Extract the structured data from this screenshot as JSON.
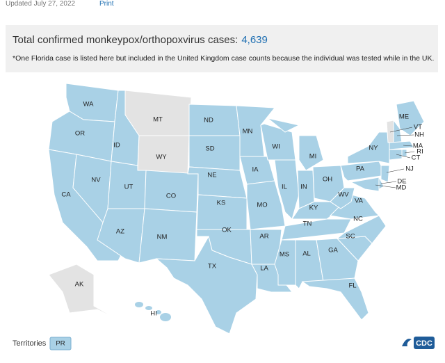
{
  "header": {
    "updated": "Updated July 27, 2022",
    "print": "Print",
    "title": "Total confirmed monkeypox/orthopoxvirus cases:",
    "total_cases": "4,639",
    "note": "*One Florida case is listed here but included in the United Kingdom case counts because the individual was tested while in the UK."
  },
  "states": [
    {
      "label": "WA",
      "color": "#a9d1e6"
    },
    {
      "label": "OR",
      "color": "#a9d1e6"
    },
    {
      "label": "CA",
      "color": "#a9d1e6"
    },
    {
      "label": "NV",
      "color": "#a9d1e6"
    },
    {
      "label": "ID",
      "color": "#a9d1e6"
    },
    {
      "label": "MT",
      "color": "#e3e3e3"
    },
    {
      "label": "WY",
      "color": "#e3e3e3"
    },
    {
      "label": "UT",
      "color": "#a9d1e6"
    },
    {
      "label": "AZ",
      "color": "#a9d1e6"
    },
    {
      "label": "CO",
      "color": "#a9d1e6"
    },
    {
      "label": "NM",
      "color": "#a9d1e6"
    },
    {
      "label": "ND",
      "color": "#a9d1e6"
    },
    {
      "label": "SD",
      "color": "#a9d1e6"
    },
    {
      "label": "NE",
      "color": "#a9d1e6"
    },
    {
      "label": "KS",
      "color": "#a9d1e6"
    },
    {
      "label": "OK",
      "color": "#a9d1e6"
    },
    {
      "label": "TX",
      "color": "#a9d1e6"
    },
    {
      "label": "MN",
      "color": "#a9d1e6"
    },
    {
      "label": "IA",
      "color": "#a9d1e6"
    },
    {
      "label": "MO",
      "color": "#a9d1e6"
    },
    {
      "label": "AR",
      "color": "#a9d1e6"
    },
    {
      "label": "LA",
      "color": "#a9d1e6"
    },
    {
      "label": "WI",
      "color": "#a9d1e6"
    },
    {
      "label": "IL",
      "color": "#a9d1e6"
    },
    {
      "label": "MI",
      "color": "#a9d1e6"
    },
    {
      "label": "IN",
      "color": "#a9d1e6"
    },
    {
      "label": "OH",
      "color": "#a9d1e6"
    },
    {
      "label": "KY",
      "color": "#a9d1e6"
    },
    {
      "label": "TN",
      "color": "#a9d1e6"
    },
    {
      "label": "MS",
      "color": "#a9d1e6"
    },
    {
      "label": "AL",
      "color": "#a9d1e6"
    },
    {
      "label": "GA",
      "color": "#a9d1e6"
    },
    {
      "label": "FL",
      "color": "#a9d1e6"
    },
    {
      "label": "SC",
      "color": "#a9d1e6"
    },
    {
      "label": "NC",
      "color": "#a9d1e6"
    },
    {
      "label": "VA",
      "color": "#a9d1e6"
    },
    {
      "label": "WV",
      "color": "#a9d1e6"
    },
    {
      "label": "PA",
      "color": "#a9d1e6"
    },
    {
      "label": "NY",
      "color": "#a9d1e6"
    },
    {
      "label": "ME",
      "color": "#a9d1e6"
    },
    {
      "label": "VT",
      "color": "#e3e3e3"
    },
    {
      "label": "NH",
      "color": "#a9d1e6"
    },
    {
      "label": "MA",
      "color": "#a9d1e6"
    },
    {
      "label": "RI",
      "color": "#a9d1e6"
    },
    {
      "label": "CT",
      "color": "#a9d1e6"
    },
    {
      "label": "NJ",
      "color": "#a9d1e6"
    },
    {
      "label": "DE",
      "color": "#a9d1e6"
    },
    {
      "label": "MD",
      "color": "#a9d1e6"
    },
    {
      "label": "AK",
      "color": "#e3e3e3"
    },
    {
      "label": "HI",
      "color": "#a9d1e6"
    }
  ],
  "territories": {
    "label": "Territories",
    "items": [
      {
        "label": "PR",
        "color": "#a9d1e6"
      }
    ]
  },
  "logo": "CDC"
}
